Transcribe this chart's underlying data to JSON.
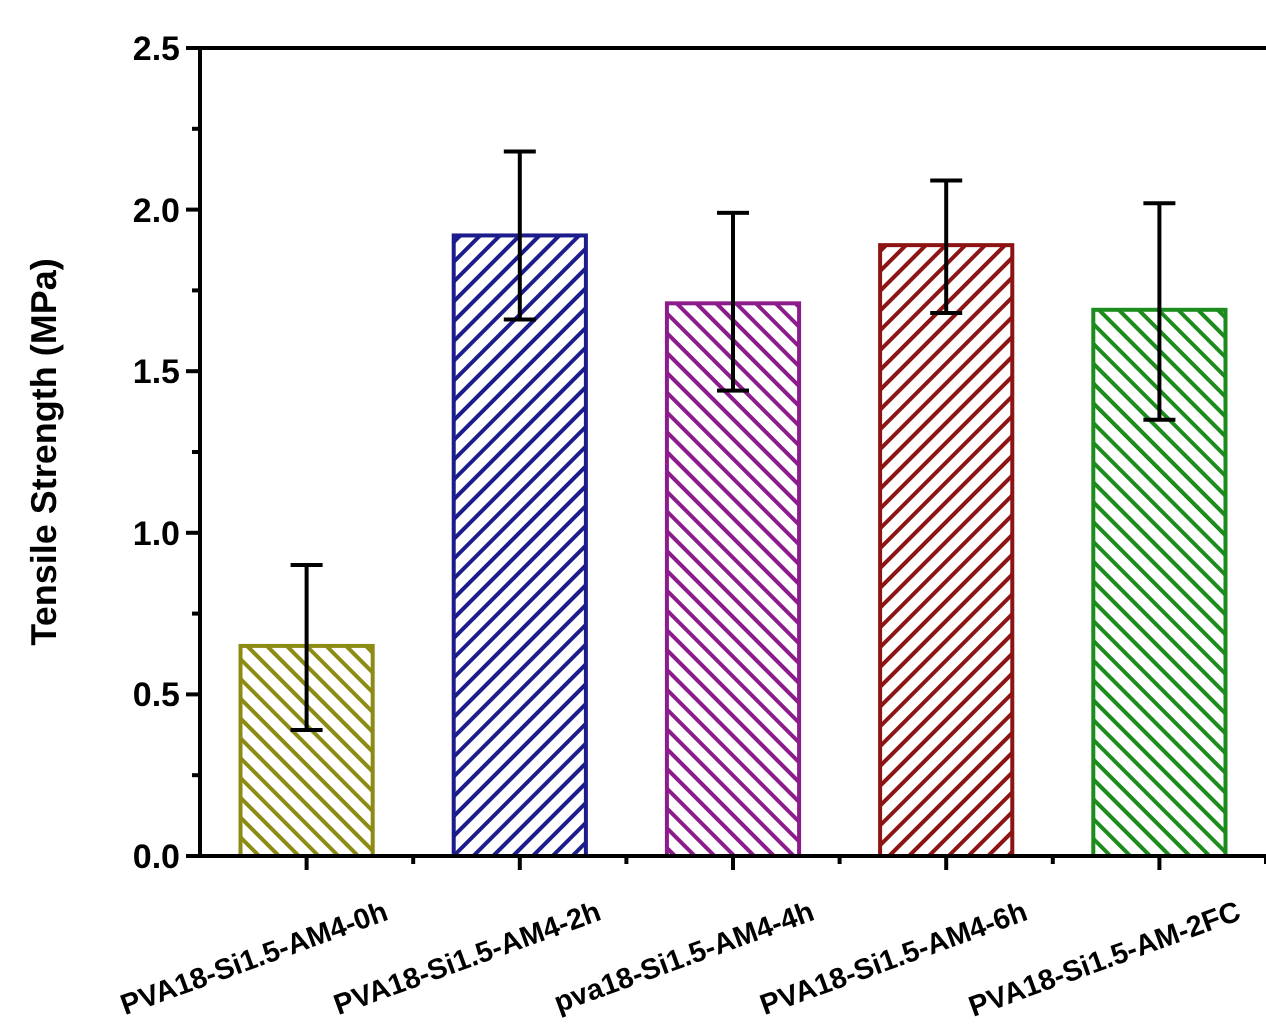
{
  "chart_data": {
    "type": "bar",
    "ylabel": "Tensile Strength (MPa)",
    "categories": [
      "PVA18-Si1.5-AM4-0h",
      "PVA18-Si1.5-AM4-2h",
      "pva18-Si1.5-AM4-4h",
      "PVA18-Si1.5-AM4-6h",
      "PVA18-Si1.5-AM-2FC"
    ],
    "values": [
      0.65,
      1.92,
      1.71,
      1.89,
      1.69
    ],
    "errors": [
      [
        0.39,
        0.9
      ],
      [
        1.66,
        2.18
      ],
      [
        1.44,
        1.99
      ],
      [
        1.68,
        2.09
      ],
      [
        1.35,
        2.02
      ]
    ],
    "colors": [
      "#8c8c14",
      "#1c1c8c",
      "#8c1c8c",
      "#8c1414",
      "#1c8c1c"
    ],
    "ylim": [
      0,
      2.5
    ],
    "yticks": [
      {
        "value": 0,
        "label": "0.0"
      },
      {
        "value": 0.25,
        "label": null
      },
      0.5,
      {
        "value": 0.75,
        "label": null
      },
      {
        "value": 1,
        "label": "1.0"
      },
      {
        "value": 1.25,
        "label": null
      },
      1.5,
      {
        "value": 1.75,
        "label": null
      },
      {
        "value": 2,
        "label": "2.0"
      },
      {
        "value": 2.25,
        "label": null
      },
      2.5
    ]
  }
}
